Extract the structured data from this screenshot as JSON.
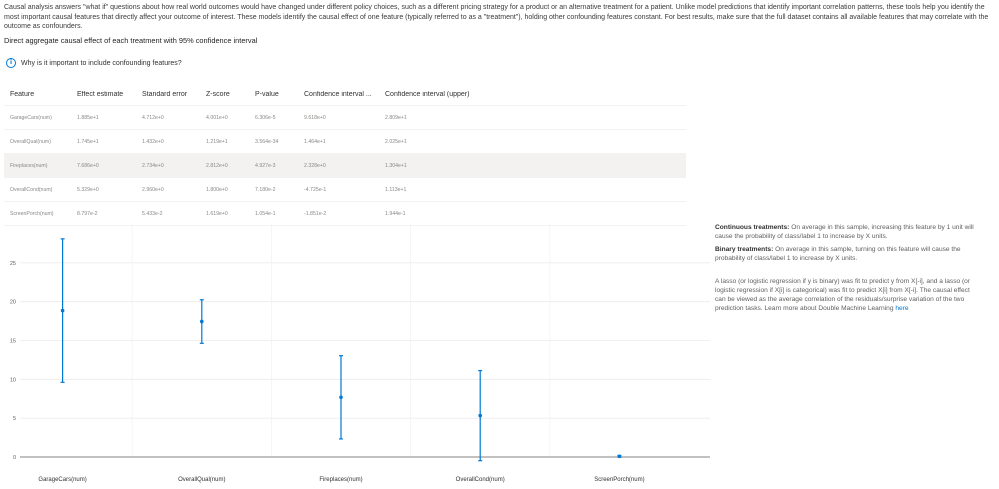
{
  "intro": "Causal analysis answers \"what if\" questions about how real world outcomes would have changed under different policy choices, such as a different pricing strategy for a product or an alternative treatment for a patient. Unlike model predictions that identify important correlation patterns, these tools help you identify the most important causal features that directly affect your outcome of interest. These models identify the causal effect of one feature (typically referred to as a \"treatment\"), holding other confounding features constant. For best results, make sure that the full dataset contains all available features that may correlate with the outcome as confounders.",
  "heading": "Direct aggregate causal effect of each treatment with 95% confidence interval",
  "why_link": "Why is it important to include confounding features?",
  "colors": {
    "accent": "#0078d4",
    "row_selected": "#f3f2f1"
  },
  "table": {
    "headers": [
      "Feature",
      "Effect estimate",
      "Standard error",
      "Z-score",
      "P-value",
      "Confidence interval ...",
      "Confidence interval (upper)"
    ],
    "rows": [
      [
        "GarageCars(num)",
        "1.885e+1",
        "4.712e+0",
        "4.001e+0",
        "6.306e-5",
        "9.618e+0",
        "2.809e+1"
      ],
      [
        "OverallQual(num)",
        "1.745e+1",
        "1.432e+0",
        "1.219e+1",
        "3.564e-34",
        "1.464e+1",
        "2.025e+1"
      ],
      [
        "Fireplaces(num)",
        "7.686e+0",
        "2.734e+0",
        "2.812e+0",
        "4.927e-3",
        "2.328e+0",
        "1.304e+1"
      ],
      [
        "OverallCond(num)",
        "5.329e+0",
        "2.960e+0",
        "1.800e+0",
        "7.180e-2",
        "-4.725e-1",
        "1.113e+1"
      ],
      [
        "ScreenPorch(num)",
        "8.797e-2",
        "5.433e-2",
        "1.619e+0",
        "1.054e-1",
        "-1.851e-2",
        "1.944e-1"
      ]
    ],
    "selected_row": 2
  },
  "chart_data": {
    "type": "scatter",
    "categories": [
      "GarageCars(num)",
      "OverallQual(num)",
      "Fireplaces(num)",
      "OverallCond(num)",
      "ScreenPorch(num)"
    ],
    "values": [
      18.85,
      17.45,
      7.686,
      5.329,
      0.08797
    ],
    "lower": [
      9.618,
      14.64,
      2.328,
      -0.4725,
      -0.01851
    ],
    "upper": [
      28.09,
      20.25,
      13.04,
      11.13,
      0.1944
    ],
    "yticks": [
      "0",
      "5",
      "10",
      "15",
      "20",
      "25"
    ],
    "ylim": [
      0,
      30
    ],
    "grid": true,
    "error_bars": true,
    "color": "#0078d4"
  },
  "side": {
    "continuous_label": "Continuous treatments:",
    "continuous_text": "On average in this sample, increasing this feature by 1 unit will cause the probability of class/label 1 to increase by X units.",
    "binary_label": "Binary treatments:",
    "binary_text": "On average in this sample, turning on this feature will cause the probability of class/label 1 to increase by X units.",
    "method_text": "A lasso (or logistic regression if y is binary) was fit to predict y from X[-i], and a lasso (or logistic regression if X[i] is categorical) was fit to predict X[i] from X[-i]. The causal effect can be viewed as the average correlation of the residuals/surprise variation of the two prediction tasks. Learn more about Double Machine Learning",
    "link": "here"
  }
}
